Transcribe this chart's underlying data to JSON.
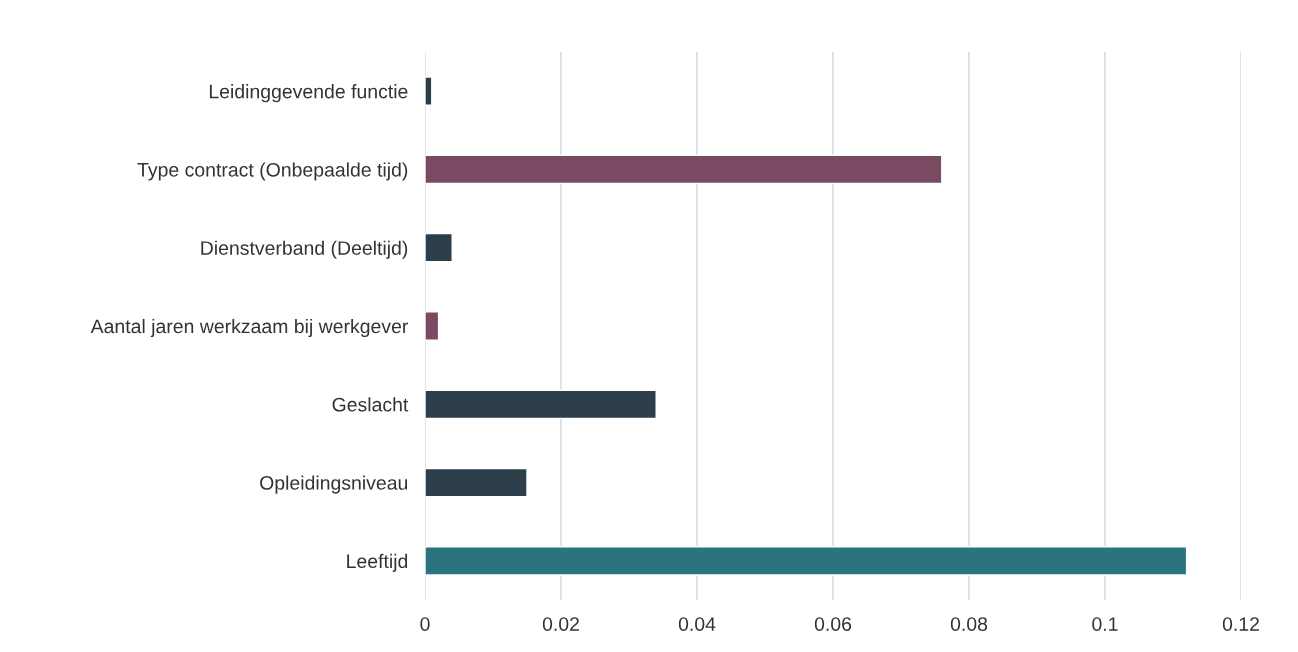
{
  "chart_data": {
    "type": "bar",
    "orientation": "horizontal",
    "categories": [
      "Leidinggevende functie",
      "Type contract (Onbepaalde tijd)",
      "Dienstverband (Deeltijd)",
      "Aantal jaren werkzaam bij werkgever",
      "Geslacht",
      "Opleidingsniveau",
      "Leeftijd"
    ],
    "values": [
      0.001,
      0.076,
      0.004,
      0.002,
      0.034,
      0.015,
      0.112
    ],
    "colors": [
      "#2c3e4a",
      "#7a4a63",
      "#2c3e4a",
      "#7a4a63",
      "#2c3e4a",
      "#2c3e4a",
      "#2b737e"
    ],
    "xlim": [
      0,
      0.12
    ],
    "xticks": [
      0,
      0.02,
      0.04,
      0.06,
      0.08,
      {
        "value": 0.1,
        "label": "0.1"
      },
      0.12
    ],
    "grid": "x",
    "legend": false
  }
}
